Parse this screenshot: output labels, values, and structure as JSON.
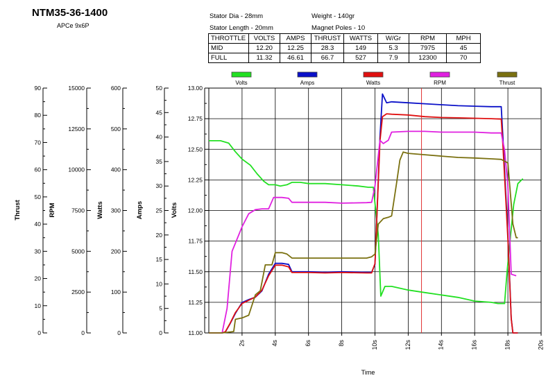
{
  "header": {
    "title": "NTM35-36-1400",
    "prop": "APCe 9x6P",
    "specs": {
      "stator_dia": "Stator Dia - 28mm",
      "stator_length": "Stator Length - 20mm",
      "weight": "Weight - 140gr",
      "magnet_poles": "Magnet Poles - 10"
    }
  },
  "table": {
    "columns": [
      "THROTTLE",
      "VOLTS",
      "AMPS",
      "THRUST",
      "WATTS",
      "W/Gr",
      "RPM",
      "MPH"
    ],
    "rows": [
      [
        "MID",
        "12.20",
        "12.25",
        "28.3",
        "149",
        "5.3",
        "7975",
        "45"
      ],
      [
        "FULL",
        "11.32",
        "46.61",
        "66.7",
        "527",
        "7.9",
        "12300",
        "70"
      ]
    ]
  },
  "chart_data": {
    "type": "line",
    "xlabel": "Time",
    "xlim": [
      0,
      20
    ],
    "x_ticks": [
      "2s",
      "4s",
      "6s",
      "8s",
      "10s",
      "12s",
      "14s",
      "16s",
      "18s",
      "20s"
    ],
    "cursor_x": 12.8,
    "grid": true,
    "legend_position": "top",
    "axes": [
      {
        "key": "thrust",
        "label": "Thrust",
        "range": [
          0,
          90
        ],
        "ticks": [
          "0",
          "10",
          "20",
          "30",
          "40",
          "50",
          "60",
          "70",
          "80",
          "90"
        ]
      },
      {
        "key": "rpm",
        "label": "RPM",
        "range": [
          0,
          15000
        ],
        "ticks": [
          "0",
          "2500",
          "5000",
          "7500",
          "10000",
          "12500",
          "15000"
        ]
      },
      {
        "key": "watts",
        "label": "Watts",
        "range": [
          0,
          600
        ],
        "ticks": [
          "0",
          "100",
          "200",
          "300",
          "400",
          "500",
          "600"
        ]
      },
      {
        "key": "amps",
        "label": "Amps",
        "range": [
          0,
          50
        ],
        "ticks": [
          "0",
          "5",
          "10",
          "15",
          "20",
          "25",
          "30",
          "35",
          "40",
          "45",
          "50"
        ]
      },
      {
        "key": "volts",
        "label": "Volts",
        "range": [
          11.0,
          13.0
        ],
        "ticks": [
          "11.00",
          "11.25",
          "11.50",
          "11.75",
          "12.00",
          "12.25",
          "12.50",
          "12.75",
          "13.00"
        ]
      }
    ],
    "series": [
      {
        "name": "Volts",
        "axis": "volts",
        "color": "#22e022",
        "points": [
          [
            0,
            12.57
          ],
          [
            0.7,
            12.57
          ],
          [
            1.2,
            12.55
          ],
          [
            1.6,
            12.48
          ],
          [
            2.0,
            12.42
          ],
          [
            2.5,
            12.37
          ],
          [
            2.9,
            12.3
          ],
          [
            3.3,
            12.24
          ],
          [
            3.6,
            12.21
          ],
          [
            4.0,
            12.21
          ],
          [
            4.3,
            12.2
          ],
          [
            4.7,
            12.21
          ],
          [
            5.0,
            12.23
          ],
          [
            5.5,
            12.23
          ],
          [
            6.0,
            12.22
          ],
          [
            7.0,
            12.22
          ],
          [
            8.0,
            12.21
          ],
          [
            9.0,
            12.2
          ],
          [
            9.6,
            12.19
          ],
          [
            9.9,
            12.19
          ],
          [
            10.2,
            11.8
          ],
          [
            10.35,
            11.3
          ],
          [
            10.6,
            11.38
          ],
          [
            11.0,
            11.38
          ],
          [
            12.0,
            11.35
          ],
          [
            13.0,
            11.33
          ],
          [
            14.0,
            11.31
          ],
          [
            15.0,
            11.29
          ],
          [
            16.0,
            11.26
          ],
          [
            17.0,
            11.25
          ],
          [
            17.4,
            11.24
          ],
          [
            17.8,
            11.24
          ],
          [
            17.95,
            11.5
          ],
          [
            18.2,
            11.85
          ],
          [
            18.35,
            12.05
          ],
          [
            18.6,
            12.22
          ],
          [
            18.9,
            12.26
          ]
        ]
      },
      {
        "name": "Amps",
        "axis": "amps",
        "color": "#0a10c8",
        "points": [
          [
            0,
            0
          ],
          [
            0.8,
            0
          ],
          [
            1.0,
            0.2
          ],
          [
            1.3,
            2.0
          ],
          [
            1.6,
            4.0
          ],
          [
            2.0,
            6.2
          ],
          [
            2.4,
            6.8
          ],
          [
            2.8,
            7.3
          ],
          [
            3.2,
            8.6
          ],
          [
            3.6,
            12.0
          ],
          [
            4.0,
            14.2
          ],
          [
            4.4,
            14.2
          ],
          [
            4.8,
            14.0
          ],
          [
            5.0,
            12.5
          ],
          [
            6.0,
            12.5
          ],
          [
            7.0,
            12.4
          ],
          [
            8.0,
            12.5
          ],
          [
            9.5,
            12.4
          ],
          [
            9.8,
            12.4
          ],
          [
            10.0,
            14.0
          ],
          [
            10.3,
            40.0
          ],
          [
            10.45,
            48.8
          ],
          [
            10.7,
            47.0
          ],
          [
            11.0,
            47.2
          ],
          [
            12.0,
            47.0
          ],
          [
            13.0,
            46.8
          ],
          [
            14.0,
            46.6
          ],
          [
            15.0,
            46.4
          ],
          [
            16.0,
            46.3
          ],
          [
            17.0,
            46.2
          ],
          [
            17.6,
            46.2
          ],
          [
            17.7,
            40.0
          ],
          [
            18.0,
            20.0
          ],
          [
            18.2,
            3.0
          ],
          [
            18.3,
            0
          ],
          [
            18.6,
            0
          ]
        ]
      },
      {
        "name": "Watts",
        "axis": "watts",
        "color": "#e01010",
        "points": [
          [
            0,
            0
          ],
          [
            0.8,
            0
          ],
          [
            1.0,
            3
          ],
          [
            1.3,
            25
          ],
          [
            1.6,
            50
          ],
          [
            2.0,
            72
          ],
          [
            2.4,
            80
          ],
          [
            2.8,
            88
          ],
          [
            3.2,
            105
          ],
          [
            3.6,
            140
          ],
          [
            4.0,
            166
          ],
          [
            4.4,
            166
          ],
          [
            4.8,
            162
          ],
          [
            5.0,
            148
          ],
          [
            6.0,
            148
          ],
          [
            7.0,
            147
          ],
          [
            8.0,
            148
          ],
          [
            9.5,
            147
          ],
          [
            9.8,
            147
          ],
          [
            10.0,
            170
          ],
          [
            10.3,
            470
          ],
          [
            10.45,
            530
          ],
          [
            10.7,
            537
          ],
          [
            11.0,
            536
          ],
          [
            12.0,
            534
          ],
          [
            13.0,
            530
          ],
          [
            14.0,
            528
          ],
          [
            15.0,
            527
          ],
          [
            16.0,
            526
          ],
          [
            17.0,
            525
          ],
          [
            17.6,
            524
          ],
          [
            17.7,
            460
          ],
          [
            18.0,
            230
          ],
          [
            18.2,
            35
          ],
          [
            18.3,
            0
          ],
          [
            18.6,
            0
          ]
        ]
      },
      {
        "name": "RPM",
        "axis": "rpm",
        "color": "#e020e0",
        "points": [
          [
            0,
            0
          ],
          [
            0.8,
            0
          ],
          [
            1.1,
            1500
          ],
          [
            1.4,
            5000
          ],
          [
            1.6,
            5500
          ],
          [
            2.0,
            6500
          ],
          [
            2.4,
            7300
          ],
          [
            2.8,
            7550
          ],
          [
            3.2,
            7600
          ],
          [
            3.6,
            7600
          ],
          [
            3.9,
            8300
          ],
          [
            4.4,
            8300
          ],
          [
            4.8,
            8250
          ],
          [
            5.0,
            8000
          ],
          [
            6.0,
            8000
          ],
          [
            7.0,
            8000
          ],
          [
            8.0,
            7950
          ],
          [
            9.5,
            7980
          ],
          [
            9.8,
            8000
          ],
          [
            10.0,
            9000
          ],
          [
            10.3,
            11800
          ],
          [
            10.5,
            11600
          ],
          [
            10.8,
            11800
          ],
          [
            11.0,
            12300
          ],
          [
            12.0,
            12350
          ],
          [
            13.0,
            12350
          ],
          [
            14.0,
            12300
          ],
          [
            15.0,
            12300
          ],
          [
            16.0,
            12300
          ],
          [
            17.0,
            12250
          ],
          [
            17.6,
            12250
          ],
          [
            17.8,
            11200
          ],
          [
            18.0,
            9000
          ],
          [
            18.2,
            3600
          ],
          [
            18.5,
            3500
          ]
        ]
      },
      {
        "name": "Thrust",
        "axis": "thrust",
        "color": "#7a7010",
        "points": [
          [
            0,
            0
          ],
          [
            0.8,
            0
          ],
          [
            1.5,
            0.5
          ],
          [
            1.6,
            5.0
          ],
          [
            2.0,
            5.5
          ],
          [
            2.4,
            6.5
          ],
          [
            2.8,
            14.0
          ],
          [
            3.1,
            15.5
          ],
          [
            3.4,
            25.0
          ],
          [
            3.8,
            25.0
          ],
          [
            4.0,
            29.5
          ],
          [
            4.4,
            29.5
          ],
          [
            4.7,
            29.0
          ],
          [
            5.0,
            27.5
          ],
          [
            6.0,
            27.5
          ],
          [
            7.0,
            27.5
          ],
          [
            8.0,
            27.5
          ],
          [
            9.5,
            27.5
          ],
          [
            9.8,
            28.0
          ],
          [
            10.0,
            29.0
          ],
          [
            10.2,
            40.0
          ],
          [
            10.5,
            42.0
          ],
          [
            10.8,
            42.5
          ],
          [
            11.0,
            43.0
          ],
          [
            11.3,
            55.0
          ],
          [
            11.5,
            63.5
          ],
          [
            11.7,
            66.5
          ],
          [
            12.0,
            66.0
          ],
          [
            13.0,
            65.5
          ],
          [
            14.0,
            65.0
          ],
          [
            15.0,
            64.5
          ],
          [
            16.0,
            64.3
          ],
          [
            17.0,
            64.0
          ],
          [
            17.6,
            63.8
          ],
          [
            18.0,
            62.5
          ],
          [
            18.3,
            40.0
          ],
          [
            18.5,
            35.0
          ],
          [
            18.6,
            35.0
          ]
        ]
      }
    ]
  }
}
